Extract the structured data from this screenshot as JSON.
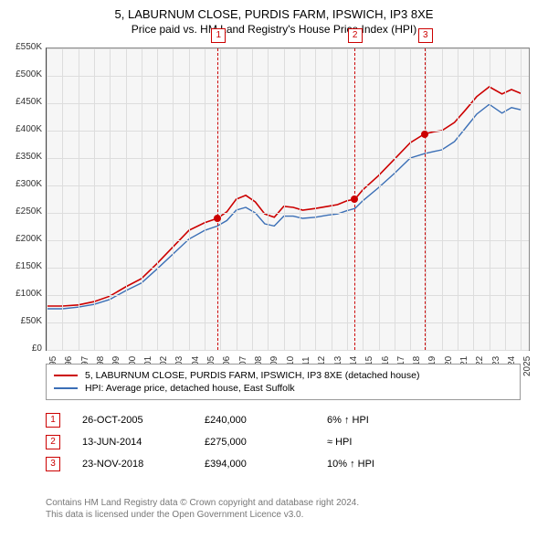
{
  "title_line1": "5, LABURNUM CLOSE, PURDIS FARM, IPSWICH, IP3 8XE",
  "title_line2": "Price paid vs. HM Land Registry's House Price Index (HPI)",
  "chart": {
    "type": "line",
    "background_color": "#f6f6f6",
    "grid_color": "#dddddd",
    "x_years": [
      1995,
      1996,
      1997,
      1998,
      1999,
      2000,
      2001,
      2002,
      2003,
      2004,
      2005,
      2006,
      2007,
      2008,
      2009,
      2010,
      2011,
      2012,
      2013,
      2014,
      2015,
      2016,
      2017,
      2018,
      2019,
      2020,
      2021,
      2022,
      2023,
      2024,
      2025
    ],
    "xlim": [
      1995,
      2025.5
    ],
    "ylim": [
      0,
      550000
    ],
    "ytick_step": 50000,
    "ylabels": [
      "£0",
      "£50K",
      "£100K",
      "£150K",
      "£200K",
      "£250K",
      "£300K",
      "£350K",
      "£400K",
      "£450K",
      "£500K",
      "£550K"
    ],
    "series": [
      {
        "name": "property",
        "color": "#cc0000",
        "width": 1.6,
        "points": [
          [
            1995.0,
            80000
          ],
          [
            1996.0,
            80000
          ],
          [
            1997.0,
            82000
          ],
          [
            1998.0,
            88000
          ],
          [
            1999.0,
            98000
          ],
          [
            2000.0,
            115000
          ],
          [
            2001.0,
            130000
          ],
          [
            2002.0,
            158000
          ],
          [
            2003.0,
            188000
          ],
          [
            2004.0,
            218000
          ],
          [
            2005.0,
            232000
          ],
          [
            2005.8,
            240000
          ],
          [
            2006.4,
            252000
          ],
          [
            2007.0,
            275000
          ],
          [
            2007.6,
            282000
          ],
          [
            2008.2,
            270000
          ],
          [
            2008.8,
            248000
          ],
          [
            2009.4,
            242000
          ],
          [
            2010.0,
            262000
          ],
          [
            2010.6,
            260000
          ],
          [
            2011.2,
            255000
          ],
          [
            2012.0,
            258000
          ],
          [
            2012.8,
            262000
          ],
          [
            2013.4,
            265000
          ],
          [
            2014.0,
            272000
          ],
          [
            2014.5,
            275000
          ],
          [
            2015.0,
            292000
          ],
          [
            2016.0,
            318000
          ],
          [
            2017.0,
            348000
          ],
          [
            2018.0,
            378000
          ],
          [
            2018.9,
            394000
          ],
          [
            2019.5,
            398000
          ],
          [
            2020.0,
            400000
          ],
          [
            2020.8,
            415000
          ],
          [
            2021.5,
            438000
          ],
          [
            2022.2,
            462000
          ],
          [
            2023.0,
            480000
          ],
          [
            2023.8,
            467000
          ],
          [
            2024.4,
            475000
          ],
          [
            2025.0,
            468000
          ]
        ]
      },
      {
        "name": "hpi",
        "color": "#3b6fb6",
        "width": 1.4,
        "points": [
          [
            1995.0,
            75000
          ],
          [
            1996.0,
            75000
          ],
          [
            1997.0,
            78000
          ],
          [
            1998.0,
            83000
          ],
          [
            1999.0,
            92000
          ],
          [
            2000.0,
            108000
          ],
          [
            2001.0,
            122000
          ],
          [
            2002.0,
            148000
          ],
          [
            2003.0,
            175000
          ],
          [
            2004.0,
            202000
          ],
          [
            2005.0,
            218000
          ],
          [
            2005.8,
            226000
          ],
          [
            2006.4,
            236000
          ],
          [
            2007.0,
            255000
          ],
          [
            2007.6,
            260000
          ],
          [
            2008.2,
            250000
          ],
          [
            2008.8,
            230000
          ],
          [
            2009.4,
            226000
          ],
          [
            2010.0,
            244000
          ],
          [
            2010.6,
            244000
          ],
          [
            2011.2,
            240000
          ],
          [
            2012.0,
            242000
          ],
          [
            2012.8,
            246000
          ],
          [
            2013.4,
            248000
          ],
          [
            2014.0,
            254000
          ],
          [
            2014.5,
            258000
          ],
          [
            2015.0,
            272000
          ],
          [
            2016.0,
            296000
          ],
          [
            2017.0,
            322000
          ],
          [
            2018.0,
            350000
          ],
          [
            2018.9,
            358000
          ],
          [
            2019.5,
            362000
          ],
          [
            2020.0,
            365000
          ],
          [
            2020.8,
            380000
          ],
          [
            2021.5,
            405000
          ],
          [
            2022.2,
            430000
          ],
          [
            2023.0,
            448000
          ],
          [
            2023.8,
            432000
          ],
          [
            2024.4,
            442000
          ],
          [
            2025.0,
            438000
          ]
        ]
      }
    ],
    "markers": [
      {
        "n": "1",
        "x": 2005.82,
        "y": 240000
      },
      {
        "n": "2",
        "x": 2014.45,
        "y": 275000
      },
      {
        "n": "3",
        "x": 2018.9,
        "y": 394000
      }
    ]
  },
  "legend": {
    "items": [
      {
        "color": "#cc0000",
        "label": "5, LABURNUM CLOSE, PURDIS FARM, IPSWICH, IP3 8XE (detached house)"
      },
      {
        "color": "#3b6fb6",
        "label": "HPI: Average price, detached house, East Suffolk"
      }
    ]
  },
  "events": [
    {
      "n": "1",
      "date": "26-OCT-2005",
      "price": "£240,000",
      "note": "6% ↑ HPI"
    },
    {
      "n": "2",
      "date": "13-JUN-2014",
      "price": "£275,000",
      "note": "≈ HPI"
    },
    {
      "n": "3",
      "date": "23-NOV-2018",
      "price": "£394,000",
      "note": "10% ↑ HPI"
    }
  ],
  "footer_line1": "Contains HM Land Registry data © Crown copyright and database right 2024.",
  "footer_line2": "This data is licensed under the Open Government Licence v3.0."
}
